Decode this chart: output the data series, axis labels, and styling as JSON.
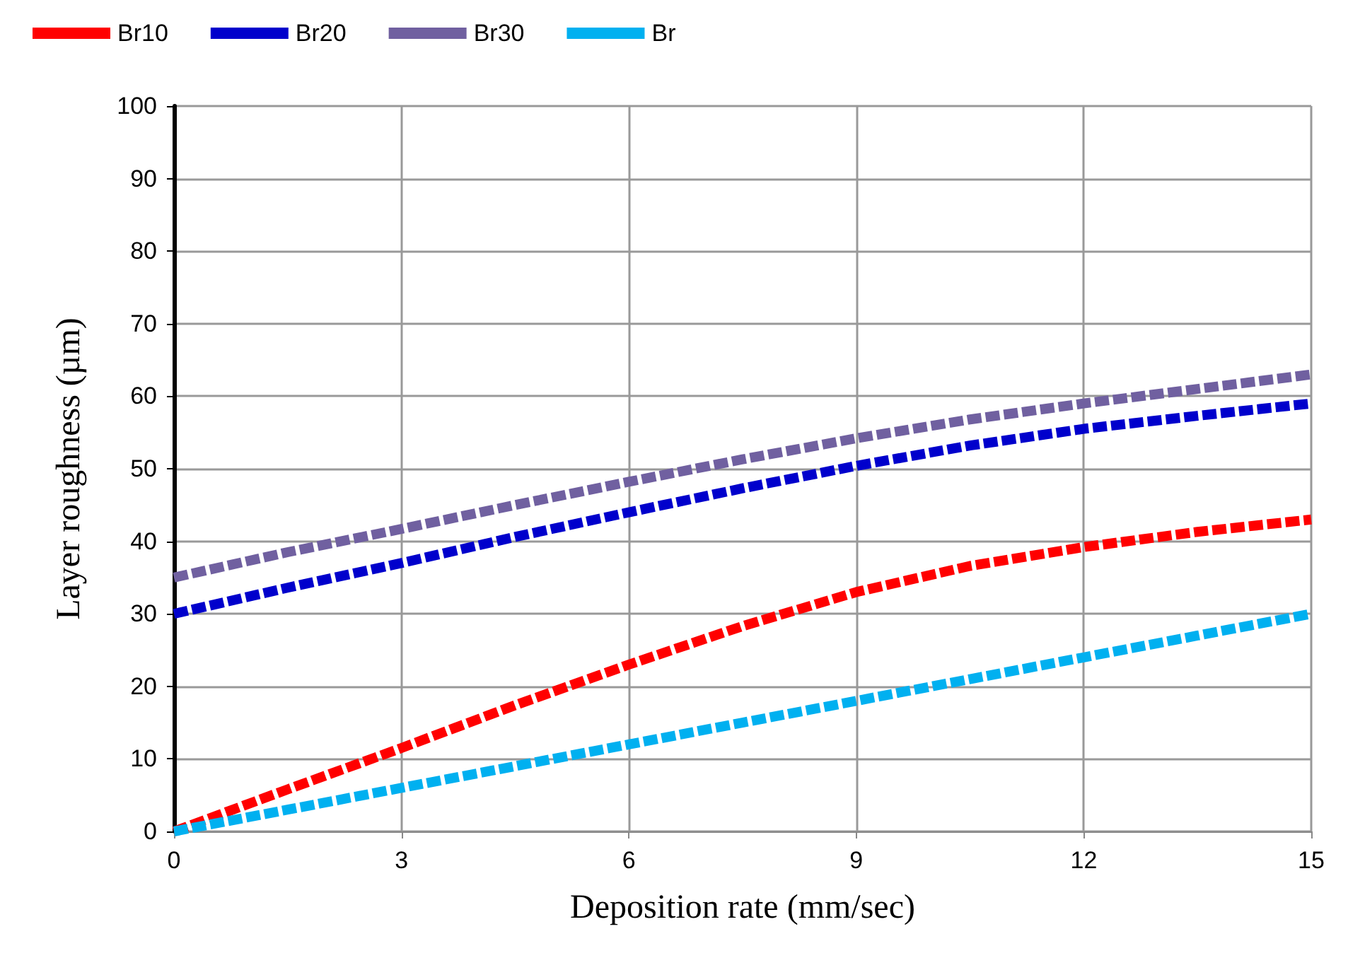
{
  "chart_data": {
    "type": "line",
    "xlabel": "Deposition rate (mm/sec)",
    "ylabel": "Layer roughness (µm)",
    "x": [
      0,
      1.5,
      3,
      4.5,
      6,
      7.5,
      9,
      10.5,
      12,
      13.5,
      15
    ],
    "series": [
      {
        "name": "Br10",
        "color": "#ff0000",
        "values": [
          0,
          5.8,
          11.5,
          17.4,
          23,
          28.3,
          33,
          36.6,
          39.2,
          41.3,
          43
        ]
      },
      {
        "name": "Br20",
        "color": "#0000cc",
        "values": [
          30,
          33.6,
          37,
          40.6,
          44,
          47.3,
          50.4,
          53.2,
          55.5,
          57.3,
          59
        ]
      },
      {
        "name": "Br30",
        "color": "#7060a0",
        "values": [
          35,
          38.5,
          41.7,
          45,
          48.2,
          51.3,
          54.2,
          56.8,
          59,
          61,
          63
        ]
      },
      {
        "name": "Br",
        "color": "#00b0f0",
        "values": [
          0,
          3,
          6,
          9,
          12,
          15,
          18,
          21,
          24,
          27,
          30
        ]
      }
    ],
    "xlim": [
      0,
      15
    ],
    "xticks": [
      0,
      3,
      6,
      9,
      12,
      15
    ],
    "ylim": [
      0,
      100
    ],
    "yticks": [
      0,
      10,
      20,
      30,
      40,
      50,
      60,
      70,
      80,
      90,
      100
    ],
    "grid": true,
    "legend": "top left",
    "marker": "none",
    "line_style": "dashed"
  }
}
